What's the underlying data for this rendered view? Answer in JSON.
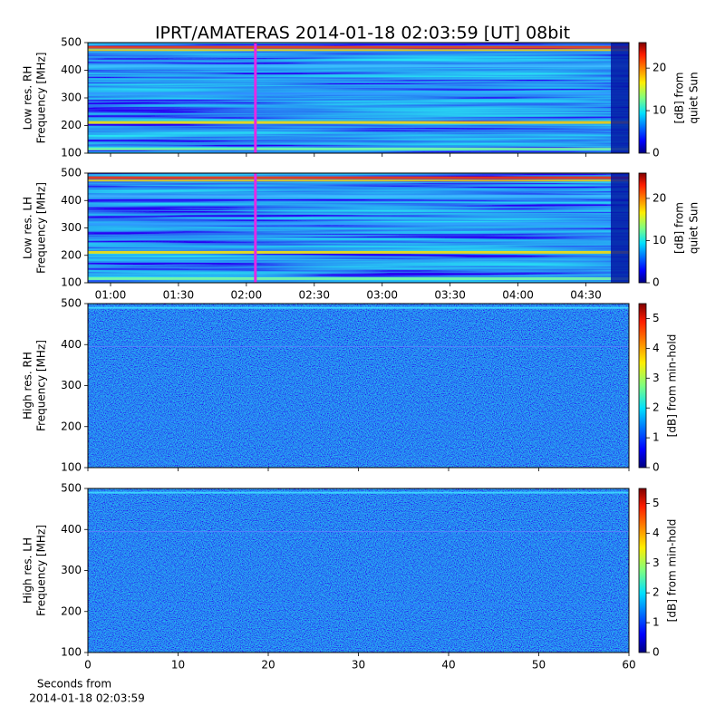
{
  "title": "IPRT/AMATERAS 2014-01-18 02:03:59 [UT]   08bit",
  "chart_data": [
    {
      "type": "spectrogram",
      "resolution": "low",
      "ylabel": [
        "Low res. RH",
        "Frequency [MHz]"
      ],
      "xlim": [
        50,
        289
      ],
      "xticks": [
        60,
        90,
        120,
        150,
        180,
        210,
        240,
        270
      ],
      "show_xtick_labels": false,
      "ylim": [
        100,
        500
      ],
      "yticks": [
        100,
        200,
        300,
        400,
        500
      ],
      "clim": [
        0,
        26
      ],
      "cticks": [
        0,
        10,
        20
      ],
      "cbar_label": [
        "[dB] from",
        "quiet Sun"
      ],
      "marker_x": 124,
      "marker_color": "#e628e6"
    },
    {
      "type": "spectrogram",
      "resolution": "low",
      "ylabel": [
        "Low res. LH",
        "Frequency [MHz]"
      ],
      "xlim": [
        50,
        289
      ],
      "xticks": [
        {
          "value": 60,
          "label": "01:00"
        },
        {
          "value": 90,
          "label": "01:30"
        },
        {
          "value": 120,
          "label": "02:00"
        },
        {
          "value": 150,
          "label": "02:30"
        },
        {
          "value": 180,
          "label": "03:00"
        },
        {
          "value": 210,
          "label": "03:30"
        },
        {
          "value": 240,
          "label": "04:00"
        },
        {
          "value": 270,
          "label": "04:30"
        }
      ],
      "show_xtick_labels": true,
      "ylim": [
        100,
        500
      ],
      "yticks": [
        100,
        200,
        300,
        400,
        500
      ],
      "clim": [
        0,
        26
      ],
      "cticks": [
        0,
        10,
        20
      ],
      "cbar_label": [
        "[dB] from",
        "quiet Sun"
      ],
      "marker_x": 124,
      "marker_color": "#e628e6"
    },
    {
      "type": "spectrogram",
      "resolution": "high",
      "ylabel": [
        "High res. RH",
        "Frequency [MHz]"
      ],
      "xlim": [
        0,
        60
      ],
      "xticks": [
        0,
        10,
        20,
        30,
        40,
        50,
        60
      ],
      "show_xtick_labels": false,
      "ylim": [
        100,
        500
      ],
      "yticks": [
        100,
        200,
        300,
        400,
        500
      ],
      "clim": [
        0,
        5.5
      ],
      "cticks": [
        0,
        1,
        2,
        3,
        4,
        5
      ],
      "cbar_label": [
        "[dB] from min-hold"
      ]
    },
    {
      "type": "spectrogram",
      "resolution": "high",
      "ylabel": [
        "High res. LH",
        "Frequency [MHz]"
      ],
      "xlim": [
        0,
        60
      ],
      "xticks": [
        0,
        10,
        20,
        30,
        40,
        50,
        60
      ],
      "show_xtick_labels": true,
      "xlabel": [
        "Seconds from",
        "2014-01-18 02:03:59"
      ],
      "ylim": [
        100,
        500
      ],
      "yticks": [
        100,
        200,
        300,
        400,
        500
      ],
      "clim": [
        0,
        5.5
      ],
      "cticks": [
        0,
        1,
        2,
        3,
        4,
        5
      ],
      "cbar_label": [
        "[dB] from min-hold"
      ]
    }
  ]
}
